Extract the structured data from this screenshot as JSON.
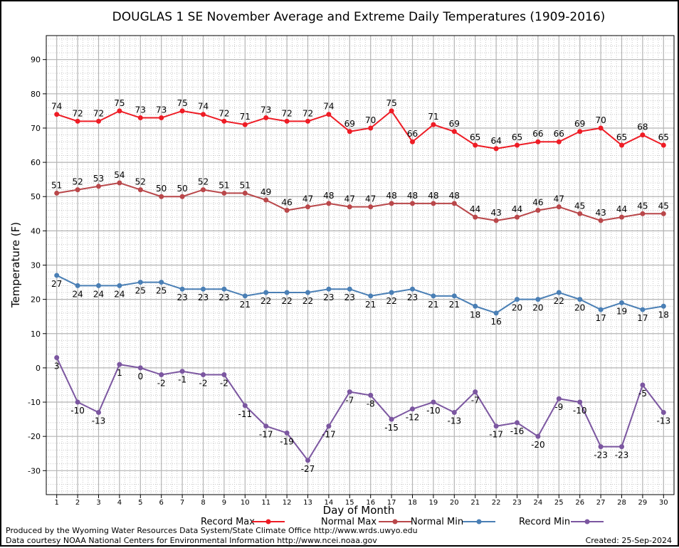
{
  "chart_data": {
    "type": "line",
    "title": "DOUGLAS 1 SE November Average and Extreme Daily Temperatures (1909-2016)",
    "xlabel": "Day of Month",
    "ylabel": "Temperature (F)",
    "x": [
      1,
      2,
      3,
      4,
      5,
      6,
      7,
      8,
      9,
      10,
      11,
      12,
      13,
      14,
      15,
      16,
      17,
      18,
      19,
      20,
      21,
      22,
      23,
      24,
      25,
      26,
      27,
      28,
      29,
      30
    ],
    "xlim": [
      0.5,
      30.5
    ],
    "ylim": [
      -37,
      97
    ],
    "yticks": [
      -30,
      -20,
      -10,
      0,
      10,
      20,
      30,
      40,
      50,
      60,
      70,
      80,
      90
    ],
    "grid": true,
    "legend_placement": "bottom",
    "series": [
      {
        "name": "Record Max",
        "color": "#ee1c25",
        "label_pos": "above",
        "values": [
          74,
          72,
          72,
          75,
          73,
          73,
          75,
          74,
          72,
          71,
          73,
          72,
          72,
          74,
          69,
          70,
          75,
          66,
          71,
          69,
          65,
          64,
          65,
          66,
          66,
          69,
          70,
          65,
          68,
          65
        ]
      },
      {
        "name": "Normal Max",
        "color": "#b9474a",
        "label_pos": "above",
        "values": [
          51,
          52,
          53,
          54,
          52,
          50,
          50,
          52,
          51,
          51,
          49,
          46,
          47,
          48,
          47,
          47,
          48,
          48,
          48,
          48,
          44,
          43,
          44,
          46,
          47,
          45,
          43,
          44,
          45,
          45
        ]
      },
      {
        "name": "Normal Min",
        "color": "#4a7fb5",
        "label_pos": "below",
        "values": [
          27,
          24,
          24,
          24,
          25,
          25,
          23,
          23,
          23,
          21,
          22,
          22,
          22,
          23,
          23,
          21,
          22,
          23,
          21,
          21,
          18,
          16,
          20,
          20,
          22,
          20,
          17,
          19,
          17,
          18
        ]
      },
      {
        "name": "Record Min",
        "color": "#7b56a0",
        "label_pos": "below",
        "values": [
          3,
          -10,
          -13,
          1,
          0,
          -2,
          -1,
          -2,
          -2,
          -11,
          -17,
          -19,
          -27,
          -17,
          -7,
          -8,
          -15,
          -12,
          -10,
          -13,
          -7,
          -17,
          -16,
          -20,
          -9,
          -10,
          -23,
          -23,
          -5,
          -13
        ]
      }
    ]
  },
  "footer": {
    "credit_line1": "Produced by the Wyoming Water Resources Data System/State Climate Office http://www.wrds.uwyo.edu",
    "credit_line2": "Data courtesy NOAA National Centers for Environmental Information http://www.ncei.noaa.gov",
    "created": "Created:  25-Sep-2024"
  }
}
